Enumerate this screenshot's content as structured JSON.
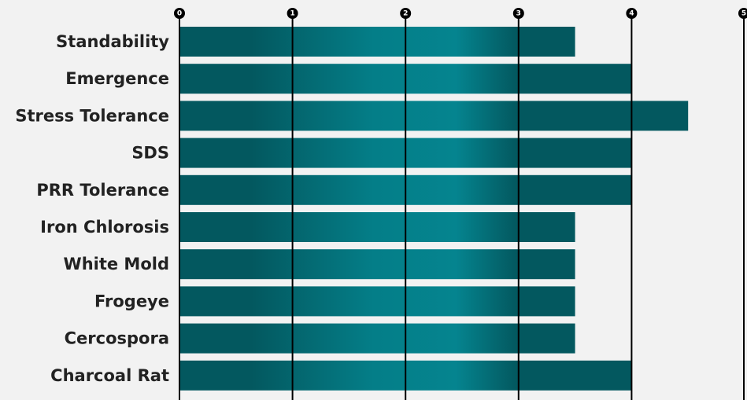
{
  "chart_data": {
    "type": "bar",
    "orientation": "horizontal",
    "categories": [
      "Standability",
      "Emergence",
      "Stress Tolerance",
      "SDS",
      "PRR Tolerance",
      "Iron Chlorosis",
      "White Mold",
      "Frogeye",
      "Cercospora",
      "Charcoal Rat"
    ],
    "values": [
      3.5,
      4,
      4.5,
      4,
      4,
      3.5,
      3.5,
      3.5,
      3.5,
      4
    ],
    "xlim": [
      0,
      5
    ],
    "xticks": [
      "0",
      "1",
      "2",
      "3",
      "4",
      "5"
    ],
    "tick_position": "top",
    "grid": true,
    "title": "",
    "xlabel": "",
    "ylabel": ""
  },
  "colors": {
    "background": "#f2f2f2",
    "bar_dark": "#03585f",
    "bar_light": "#047e88",
    "gridline": "#000000",
    "label_text": "#222222",
    "tick_badge": "#000000",
    "tick_text": "#ffffff"
  }
}
